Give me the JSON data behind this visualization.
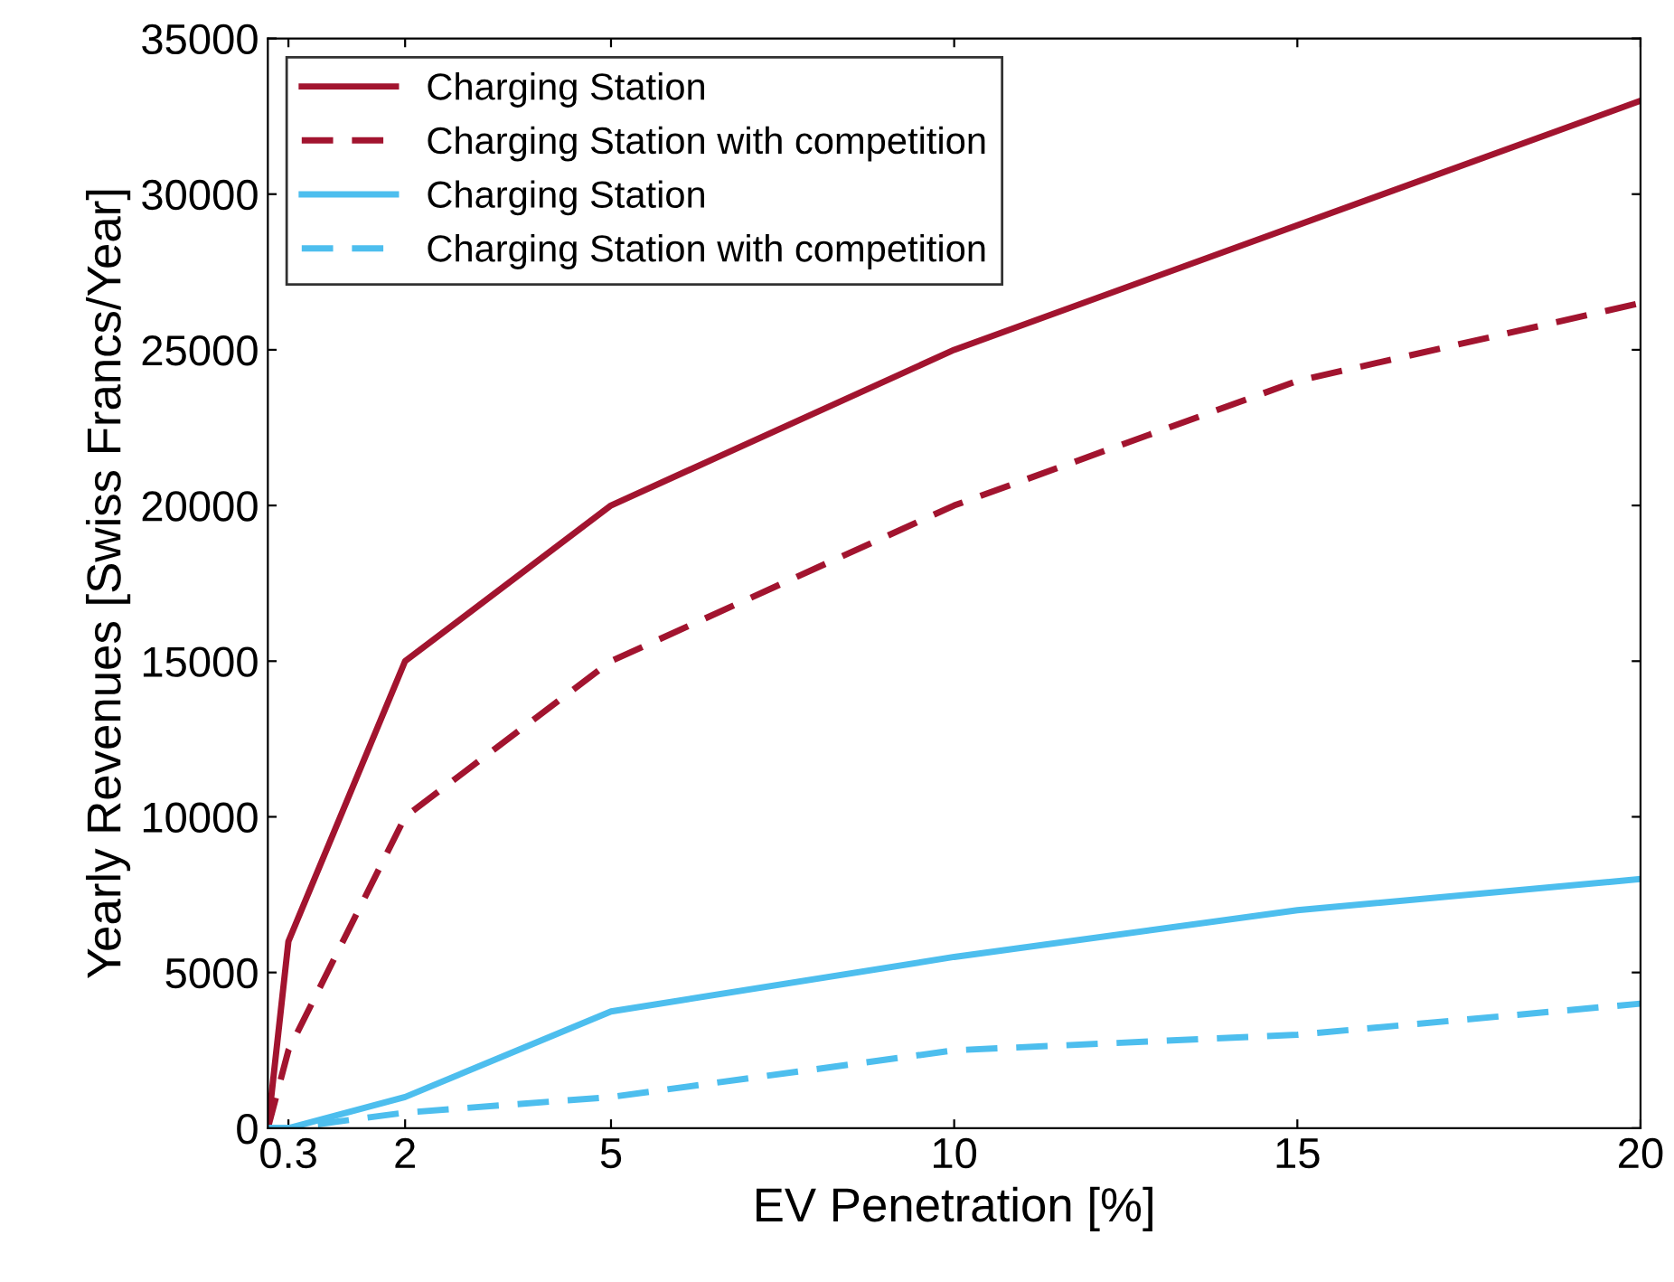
{
  "chart_data": {
    "type": "line",
    "xlabel": "EV Penetration [%]",
    "ylabel": "Yearly Revenues [Swiss Francs/Year]",
    "x": [
      0,
      0.3,
      2,
      5,
      10,
      15,
      20
    ],
    "series": [
      {
        "name": "Charging Station",
        "color": "#a2142f",
        "line_style": "solid",
        "x": [
          0,
          0.3,
          2,
          5,
          10,
          20
        ],
        "values": [
          0,
          6000,
          15000,
          20000,
          25000,
          33000
        ]
      },
      {
        "name": "Charging Station with competition",
        "color": "#a2142f",
        "line_style": "dashed",
        "values": [
          0,
          2500,
          10000,
          15000,
          20000,
          24000,
          26500
        ]
      },
      {
        "name": "Charging Station",
        "color": "#4dbeee",
        "line_style": "solid",
        "values": [
          0,
          0,
          1000,
          3750,
          5500,
          7000,
          8000
        ]
      },
      {
        "name": "Charging Station with competition",
        "color": "#4dbeee",
        "line_style": "dashed",
        "values": [
          0,
          0,
          500,
          1000,
          2500,
          3000,
          4000
        ]
      }
    ],
    "xlim": [
      0,
      20
    ],
    "xticks": [
      0.3,
      2,
      5,
      10,
      15,
      20
    ],
    "ylim": [
      0,
      35000
    ],
    "yticks": [
      0,
      5000,
      10000,
      15000,
      20000,
      25000,
      30000,
      35000
    ],
    "grid": false,
    "legend": "top left",
    "marker": "none"
  }
}
